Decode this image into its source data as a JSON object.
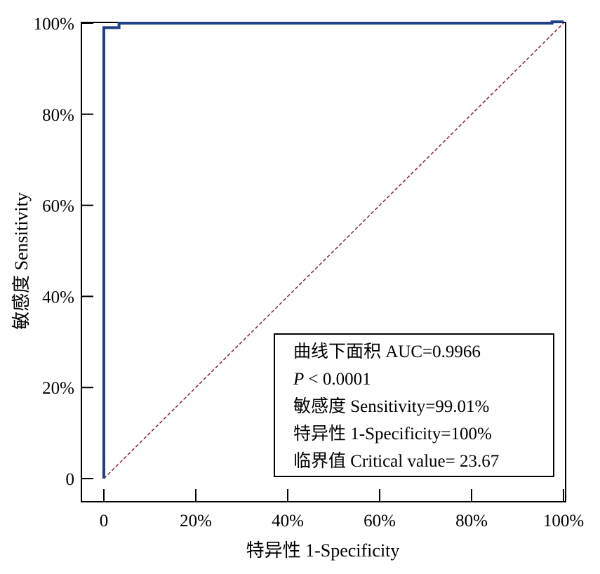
{
  "chart_data": {
    "type": "line",
    "title": "",
    "xlabel": "特异性 1-Specificity",
    "ylabel": "敏感度 Sensitivity",
    "xlim": [
      0,
      100
    ],
    "ylim": [
      0,
      100
    ],
    "x_ticks": [
      {
        "value": 0,
        "label": "0"
      },
      {
        "value": 20,
        "label": "20%"
      },
      {
        "value": 40,
        "label": "40%"
      },
      {
        "value": 60,
        "label": "60%"
      },
      {
        "value": 80,
        "label": "80%"
      },
      {
        "value": 100,
        "label": "100%"
      }
    ],
    "y_ticks": [
      {
        "value": 0,
        "label": "0"
      },
      {
        "value": 20,
        "label": "20%"
      },
      {
        "value": 40,
        "label": "40%"
      },
      {
        "value": 60,
        "label": "60%"
      },
      {
        "value": 80,
        "label": "80%"
      },
      {
        "value": 100,
        "label": "100%"
      }
    ],
    "grid": false,
    "series": [
      {
        "color": "#1f3f86",
        "style": "solid",
        "x": [
          0,
          0,
          3.3,
          3.3,
          97.5,
          97.5,
          100
        ],
        "y": [
          0,
          99.01,
          99.01,
          100,
          100,
          100.3,
          100.3
        ]
      },
      {
        "color": "#8b1a4a",
        "style": "dashed",
        "x": [
          0,
          100
        ],
        "y": [
          0,
          100
        ]
      }
    ],
    "legend_position": "bottom-right",
    "annotations": [
      {
        "prefix": "曲线下面积 AUC=0.9966",
        "italic": ""
      },
      {
        "prefix": "",
        "italic": "P",
        "suffix": " < 0.0001"
      },
      {
        "prefix": "敏感度 Sensitivity=99.01%",
        "italic": ""
      },
      {
        "prefix": "特异性 1-Specificity=100%",
        "italic": ""
      },
      {
        "prefix": "临界值 Critical value= 23.67",
        "italic": ""
      }
    ]
  }
}
